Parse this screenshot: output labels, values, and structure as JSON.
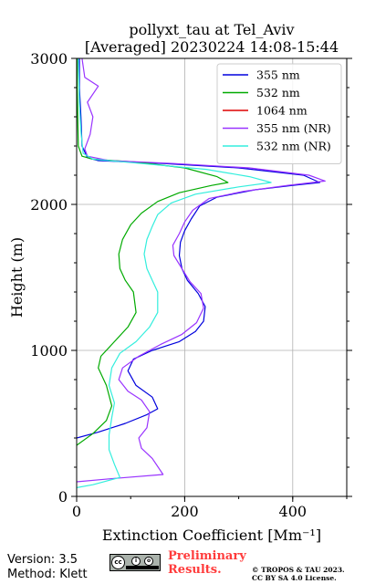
{
  "chart_data": {
    "type": "line",
    "title": "pollyxt_tau at Tel_Aviv",
    "subtitle": "[Averaged] 20230224 14:08-15:44",
    "xlabel": "Extinction Coefficient [Mm⁻¹]",
    "ylabel": "Height (m)",
    "xlim": [
      0,
      500
    ],
    "ylim": [
      0,
      3000
    ],
    "xticks": [
      "0",
      "200",
      "400"
    ],
    "yticks": [
      "0",
      "1000",
      "2000",
      "3000"
    ],
    "grid": true,
    "legend_position": "top-right",
    "series": [
      {
        "name": "355 nm",
        "color": "#0000dd",
        "points": [
          [
            0,
            400
          ],
          [
            40,
            440
          ],
          [
            90,
            500
          ],
          [
            130,
            560
          ],
          [
            150,
            600
          ],
          [
            140,
            680
          ],
          [
            110,
            760
          ],
          [
            95,
            860
          ],
          [
            105,
            940
          ],
          [
            140,
            1000
          ],
          [
            190,
            1060
          ],
          [
            220,
            1130
          ],
          [
            235,
            1200
          ],
          [
            238,
            1300
          ],
          [
            225,
            1390
          ],
          [
            205,
            1480
          ],
          [
            195,
            1560
          ],
          [
            190,
            1650
          ],
          [
            192,
            1740
          ],
          [
            200,
            1820
          ],
          [
            212,
            1900
          ],
          [
            228,
            1990
          ],
          [
            260,
            2050
          ],
          [
            330,
            2100
          ],
          [
            400,
            2130
          ],
          [
            450,
            2150
          ],
          [
            420,
            2200
          ],
          [
            300,
            2250
          ],
          [
            160,
            2280
          ],
          [
            40,
            2300
          ],
          [
            20,
            2320
          ],
          [
            10,
            2400
          ],
          [
            8,
            2600
          ],
          [
            5,
            2800
          ],
          [
            5,
            3000
          ]
        ]
      },
      {
        "name": "532 nm",
        "color": "#00aa00",
        "points": [
          [
            0,
            350
          ],
          [
            30,
            430
          ],
          [
            55,
            520
          ],
          [
            65,
            620
          ],
          [
            55,
            760
          ],
          [
            40,
            880
          ],
          [
            45,
            960
          ],
          [
            70,
            1060
          ],
          [
            95,
            1160
          ],
          [
            110,
            1260
          ],
          [
            105,
            1400
          ],
          [
            90,
            1480
          ],
          [
            80,
            1560
          ],
          [
            78,
            1660
          ],
          [
            85,
            1760
          ],
          [
            100,
            1860
          ],
          [
            120,
            1940
          ],
          [
            150,
            2020
          ],
          [
            190,
            2080
          ],
          [
            250,
            2130
          ],
          [
            280,
            2150
          ],
          [
            260,
            2190
          ],
          [
            200,
            2250
          ],
          [
            110,
            2290
          ],
          [
            30,
            2310
          ],
          [
            10,
            2330
          ],
          [
            3,
            2400
          ],
          [
            2,
            2600
          ],
          [
            1,
            2800
          ],
          [
            1,
            3000
          ]
        ]
      },
      {
        "name": "1064 nm",
        "color": "#dd0000",
        "points": []
      },
      {
        "name": "355 nm (NR)",
        "color": "#9933ff",
        "points": [
          [
            0,
            100
          ],
          [
            60,
            120
          ],
          [
            160,
            150
          ],
          [
            140,
            260
          ],
          [
            120,
            330
          ],
          [
            115,
            400
          ],
          [
            130,
            470
          ],
          [
            135,
            580
          ],
          [
            120,
            660
          ],
          [
            95,
            720
          ],
          [
            78,
            800
          ],
          [
            85,
            880
          ],
          [
            115,
            960
          ],
          [
            155,
            1040
          ],
          [
            195,
            1110
          ],
          [
            222,
            1190
          ],
          [
            235,
            1290
          ],
          [
            230,
            1390
          ],
          [
            210,
            1470
          ],
          [
            195,
            1560
          ],
          [
            180,
            1650
          ],
          [
            178,
            1720
          ],
          [
            190,
            1800
          ],
          [
            200,
            1880
          ],
          [
            215,
            1960
          ],
          [
            245,
            2040
          ],
          [
            310,
            2090
          ],
          [
            390,
            2130
          ],
          [
            460,
            2160
          ],
          [
            430,
            2200
          ],
          [
            320,
            2250
          ],
          [
            180,
            2280
          ],
          [
            60,
            2300
          ],
          [
            20,
            2330
          ],
          [
            15,
            2380
          ],
          [
            25,
            2480
          ],
          [
            30,
            2600
          ],
          [
            20,
            2700
          ],
          [
            40,
            2810
          ],
          [
            15,
            2870
          ],
          [
            10,
            3000
          ]
        ]
      },
      {
        "name": "532 nm (NR)",
        "color": "#33eedd",
        "points": [
          [
            0,
            60
          ],
          [
            30,
            80
          ],
          [
            80,
            130
          ],
          [
            70,
            220
          ],
          [
            60,
            320
          ],
          [
            60,
            420
          ],
          [
            65,
            540
          ],
          [
            70,
            640
          ],
          [
            60,
            760
          ],
          [
            65,
            880
          ],
          [
            80,
            980
          ],
          [
            110,
            1060
          ],
          [
            135,
            1160
          ],
          [
            150,
            1260
          ],
          [
            150,
            1400
          ],
          [
            140,
            1480
          ],
          [
            130,
            1560
          ],
          [
            125,
            1660
          ],
          [
            130,
            1760
          ],
          [
            140,
            1850
          ],
          [
            150,
            1930
          ],
          [
            175,
            2010
          ],
          [
            220,
            2070
          ],
          [
            300,
            2120
          ],
          [
            360,
            2150
          ],
          [
            320,
            2190
          ],
          [
            240,
            2240
          ],
          [
            120,
            2280
          ],
          [
            30,
            2310
          ],
          [
            12,
            2350
          ],
          [
            8,
            2500
          ],
          [
            5,
            2700
          ],
          [
            3,
            3000
          ]
        ]
      }
    ]
  },
  "footer": {
    "version": "Version: 3.5",
    "method": "Method: Klett",
    "preliminary": "Preliminary",
    "results": "Results.",
    "copyright": "© TROPOS & TAU 2023.",
    "license": "CC BY SA 4.0 License.",
    "badge_cc": "cc",
    "badge_by": "i",
    "badge_sa": "o"
  }
}
